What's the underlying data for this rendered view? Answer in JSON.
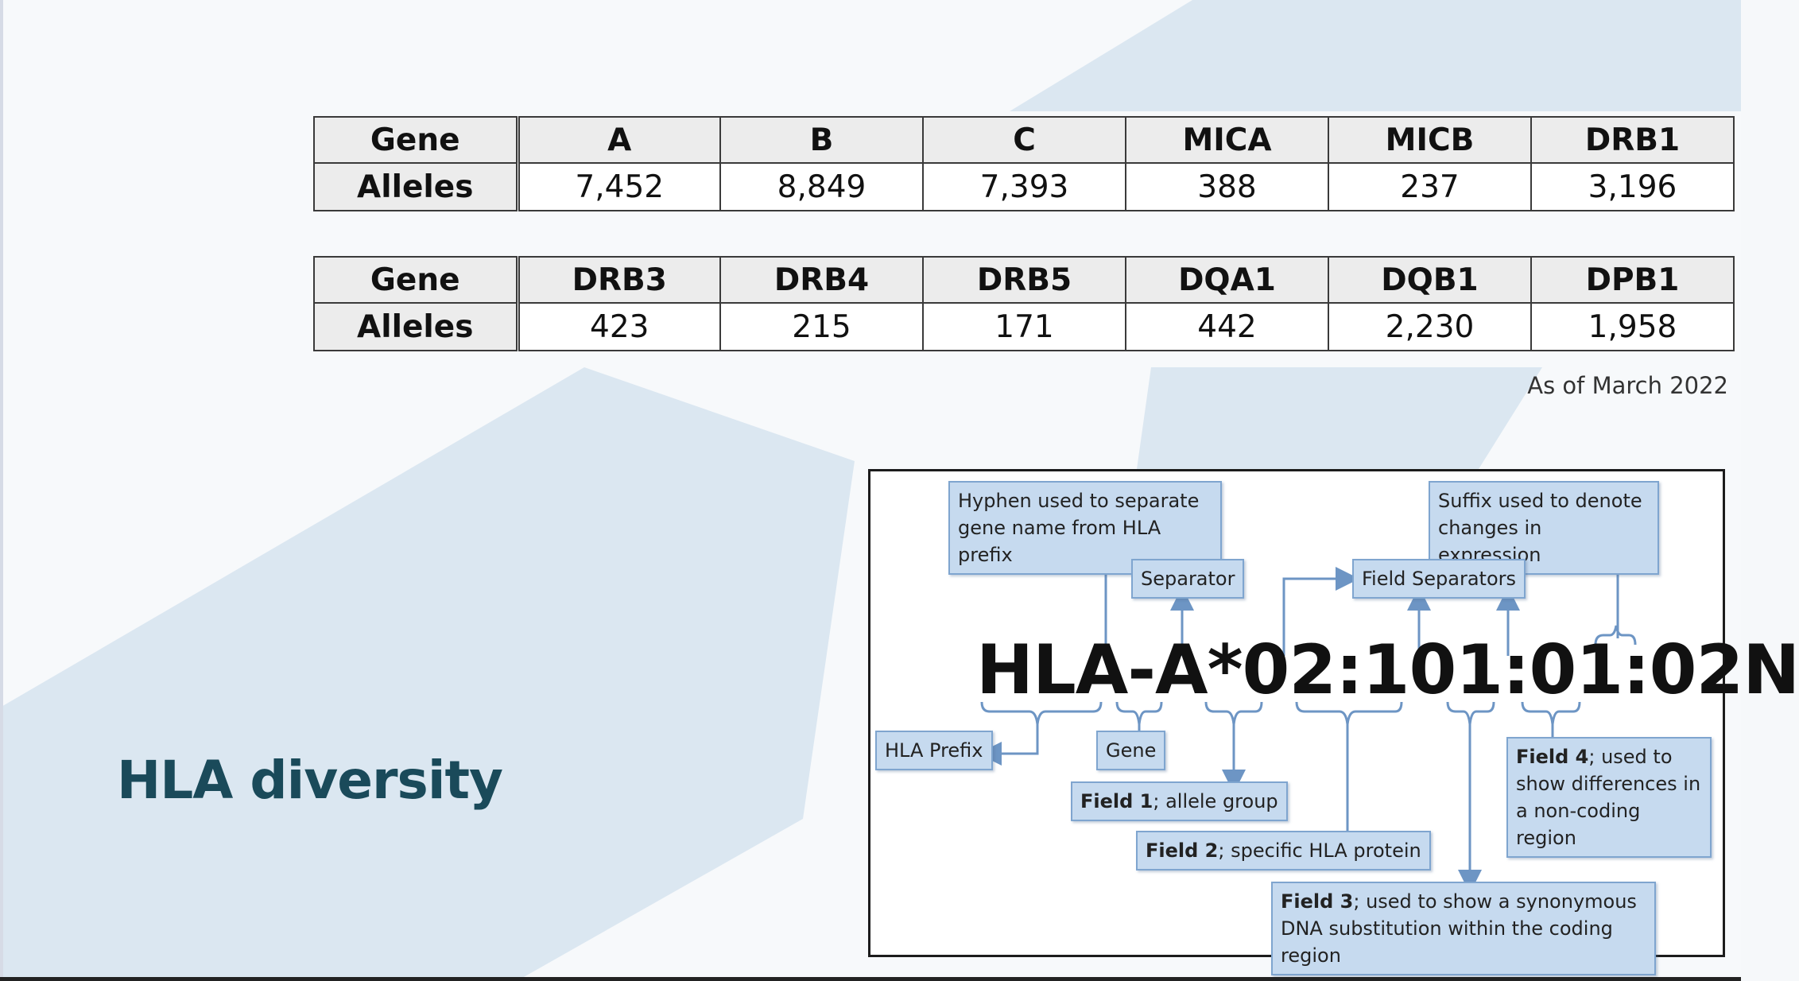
{
  "table1": {
    "header_label": "Gene",
    "genes": [
      "A",
      "B",
      "C",
      "MICA",
      "MICB",
      "DRB1"
    ],
    "row_label": "Alleles",
    "alleles": [
      "7,452",
      "8,849",
      "7,393",
      "388",
      "237",
      "3,196"
    ]
  },
  "table2": {
    "header_label": "Gene",
    "genes": [
      "DRB3",
      "DRB4",
      "DRB5",
      "DQA1",
      "DQB1",
      "DPB1"
    ],
    "row_label": "Alleles",
    "alleles": [
      "423",
      "215",
      "171",
      "442",
      "2,230",
      "1,958"
    ]
  },
  "as_of": "As of March 2022",
  "title": "HLA diversity",
  "diagram": {
    "allele_name": "HLA-A*02:101:01:02N",
    "hyphen_note": "Hyphen used to separate gene name from HLA prefix",
    "suffix_note": "Suffix used to denote changes in expression",
    "separator": "Separator",
    "field_separators": "Field Separators",
    "hla_prefix": "HLA Prefix",
    "gene": "Gene",
    "field1_bold": "Field 1",
    "field1_rest": "; allele group",
    "field2_bold": "Field 2",
    "field2_rest": "; specific HLA protein",
    "field3_bold": "Field 3",
    "field3_rest": "; used to show a synonymous DNA substitution within the coding region",
    "field4_bold": "Field 4",
    "field4_rest": "; used to show differences in a non-coding region"
  }
}
